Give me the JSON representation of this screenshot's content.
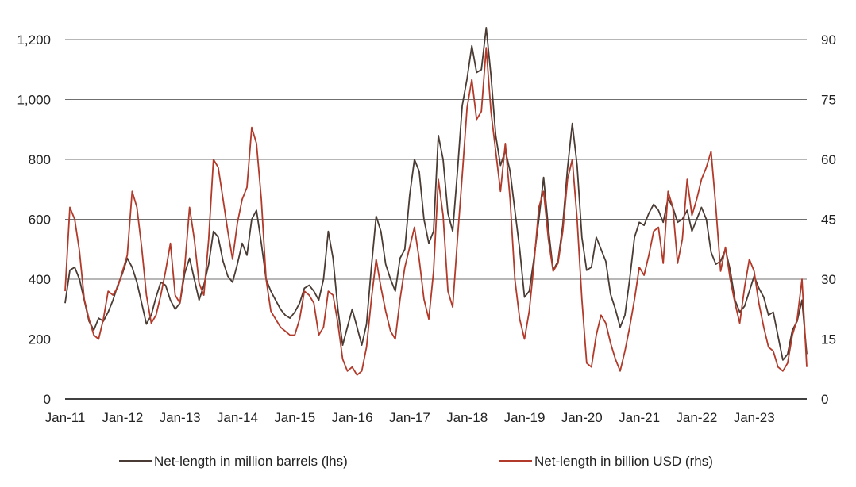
{
  "chart_data": {
    "type": "line",
    "title": "",
    "xlabel": "",
    "ylabel": "",
    "x_tick_labels": [
      "Jan-11",
      "Jan-12",
      "Jan-13",
      "Jan-14",
      "Jan-15",
      "Jan-16",
      "Jan-17",
      "Jan-18",
      "Jan-19",
      "Jan-20",
      "Jan-21",
      "Jan-22",
      "Jan-23"
    ],
    "x_range": [
      "2011-01",
      "2023-12"
    ],
    "y_left": {
      "range": [
        0,
        1200
      ],
      "ticks": [
        0,
        200,
        400,
        600,
        800,
        1000,
        1200
      ],
      "tick_labels": [
        "0",
        "200",
        "400",
        "600",
        "800",
        "1,000",
        "1,200"
      ]
    },
    "y_right": {
      "range": [
        0,
        90
      ],
      "ticks": [
        0,
        15,
        30,
        45,
        60,
        75,
        90
      ],
      "tick_labels": [
        "0",
        "15",
        "30",
        "45",
        "60",
        "75",
        "90"
      ]
    },
    "grid": "horizontal",
    "legend_position": "bottom",
    "x": [
      "2011-01",
      "2011-02",
      "2011-03",
      "2011-04",
      "2011-05",
      "2011-06",
      "2011-07",
      "2011-08",
      "2011-09",
      "2011-10",
      "2011-11",
      "2011-12",
      "2012-01",
      "2012-02",
      "2012-03",
      "2012-04",
      "2012-05",
      "2012-06",
      "2012-07",
      "2012-08",
      "2012-09",
      "2012-10",
      "2012-11",
      "2012-12",
      "2013-01",
      "2013-02",
      "2013-03",
      "2013-04",
      "2013-05",
      "2013-06",
      "2013-07",
      "2013-08",
      "2013-09",
      "2013-10",
      "2013-11",
      "2013-12",
      "2014-01",
      "2014-02",
      "2014-03",
      "2014-04",
      "2014-05",
      "2014-06",
      "2014-07",
      "2014-08",
      "2014-09",
      "2014-10",
      "2014-11",
      "2014-12",
      "2015-01",
      "2015-02",
      "2015-03",
      "2015-04",
      "2015-05",
      "2015-06",
      "2015-07",
      "2015-08",
      "2015-09",
      "2015-10",
      "2015-11",
      "2015-12",
      "2016-01",
      "2016-02",
      "2016-03",
      "2016-04",
      "2016-05",
      "2016-06",
      "2016-07",
      "2016-08",
      "2016-09",
      "2016-10",
      "2016-11",
      "2016-12",
      "2017-01",
      "2017-02",
      "2017-03",
      "2017-04",
      "2017-05",
      "2017-06",
      "2017-07",
      "2017-08",
      "2017-09",
      "2017-10",
      "2017-11",
      "2017-12",
      "2018-01",
      "2018-02",
      "2018-03",
      "2018-04",
      "2018-05",
      "2018-06",
      "2018-07",
      "2018-08",
      "2018-09",
      "2018-10",
      "2018-11",
      "2018-12",
      "2019-01",
      "2019-02",
      "2019-03",
      "2019-04",
      "2019-05",
      "2019-06",
      "2019-07",
      "2019-08",
      "2019-09",
      "2019-10",
      "2019-11",
      "2019-12",
      "2020-01",
      "2020-02",
      "2020-03",
      "2020-04",
      "2020-05",
      "2020-06",
      "2020-07",
      "2020-08",
      "2020-09",
      "2020-10",
      "2020-11",
      "2020-12",
      "2021-01",
      "2021-02",
      "2021-03",
      "2021-04",
      "2021-05",
      "2021-06",
      "2021-07",
      "2021-08",
      "2021-09",
      "2021-10",
      "2021-11",
      "2021-12",
      "2022-01",
      "2022-02",
      "2022-03",
      "2022-04",
      "2022-05",
      "2022-06",
      "2022-07",
      "2022-08",
      "2022-09",
      "2022-10",
      "2022-11",
      "2022-12",
      "2023-01",
      "2023-02",
      "2023-03",
      "2023-04",
      "2023-05",
      "2023-06",
      "2023-07",
      "2023-08",
      "2023-09",
      "2023-10",
      "2023-11",
      "2023-12"
    ],
    "series": [
      {
        "name": "Net-length in million barrels (lhs)",
        "axis": "left",
        "color": "#4a3c34",
        "values": [
          320,
          430,
          440,
          400,
          330,
          260,
          230,
          270,
          260,
          290,
          330,
          380,
          420,
          470,
          440,
          390,
          320,
          250,
          280,
          340,
          390,
          380,
          330,
          300,
          320,
          420,
          470,
          400,
          330,
          380,
          450,
          560,
          540,
          460,
          410,
          390,
          450,
          520,
          480,
          600,
          630,
          520,
          400,
          360,
          330,
          300,
          280,
          270,
          290,
          320,
          370,
          380,
          360,
          330,
          400,
          560,
          470,
          300,
          180,
          240,
          300,
          240,
          180,
          250,
          440,
          610,
          560,
          450,
          400,
          360,
          470,
          500,
          680,
          800,
          760,
          600,
          520,
          560,
          880,
          800,
          620,
          560,
          760,
          980,
          1070,
          1180,
          1090,
          1100,
          1240,
          1080,
          880,
          780,
          830,
          760,
          630,
          500,
          340,
          360,
          470,
          600,
          740,
          570,
          430,
          460,
          580,
          770,
          920,
          780,
          540,
          430,
          440,
          540,
          500,
          460,
          350,
          300,
          240,
          280,
          400,
          540,
          590,
          580,
          620,
          650,
          630,
          590,
          670,
          640,
          590,
          600,
          630,
          560,
          600,
          640,
          600,
          490,
          450,
          460,
          500,
          430,
          330,
          290,
          310,
          360,
          410,
          370,
          340,
          280,
          290,
          210,
          130,
          150,
          230,
          260,
          330,
          150
        ]
      },
      {
        "name": "Net-length in billion USD (rhs)",
        "axis": "left",
        "axis_side": "right",
        "color": "#b23a2a",
        "values": [
          27,
          48,
          45,
          37,
          25,
          20,
          16,
          15,
          20,
          27,
          26,
          28,
          32,
          36,
          52,
          48,
          38,
          26,
          19,
          21,
          26,
          32,
          39,
          26,
          24,
          33,
          48,
          40,
          29,
          26,
          40,
          60,
          58,
          50,
          42,
          35,
          44,
          50,
          53,
          68,
          64,
          50,
          30,
          22,
          20,
          18,
          17,
          16,
          16,
          20,
          27,
          26,
          24,
          16,
          18,
          27,
          26,
          19,
          10,
          7,
          8,
          6,
          7,
          13,
          25,
          35,
          28,
          22,
          17,
          15,
          25,
          33,
          38,
          43,
          35,
          25,
          20,
          32,
          55,
          46,
          27,
          23,
          40,
          56,
          73,
          80,
          70,
          72,
          88,
          72,
          62,
          52,
          64,
          50,
          30,
          20,
          15,
          22,
          34,
          48,
          52,
          40,
          32,
          34,
          42,
          55,
          60,
          45,
          25,
          9,
          8,
          16,
          21,
          19,
          14,
          10,
          7,
          12,
          18,
          25,
          33,
          31,
          36,
          42,
          43,
          34,
          52,
          48,
          34,
          40,
          55,
          46,
          50,
          55,
          58,
          62,
          48,
          32,
          38,
          30,
          24,
          19,
          28,
          35,
          32,
          24,
          18,
          13,
          12,
          8,
          7,
          9,
          16,
          20,
          30,
          8
        ]
      }
    ]
  }
}
